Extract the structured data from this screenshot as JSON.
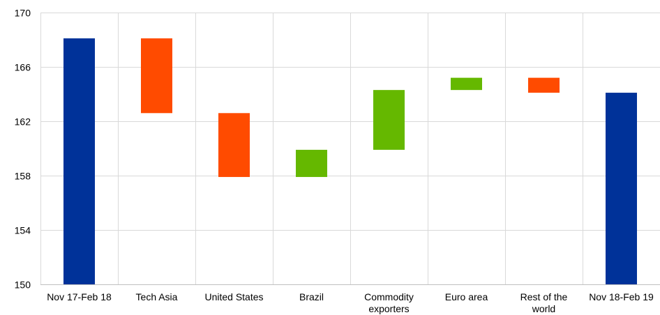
{
  "chart_data": {
    "type": "bar",
    "subtype": "waterfall",
    "title": "",
    "xlabel": "",
    "ylabel": "",
    "ylim": [
      150,
      170
    ],
    "yticks": [
      150,
      154,
      158,
      162,
      166,
      170
    ],
    "grid": true,
    "categories": [
      [
        "Nov 17-Feb 18"
      ],
      [
        "Tech Asia"
      ],
      [
        "United States"
      ],
      [
        "Brazil"
      ],
      [
        "Commodity",
        "exporters"
      ],
      [
        "Euro area"
      ],
      [
        "Rest of the",
        "world"
      ],
      [
        "Nov 18-Feb 19"
      ]
    ],
    "bars": [
      {
        "low": 150.0,
        "high": 168.1,
        "kind": "total"
      },
      {
        "low": 162.6,
        "high": 168.1,
        "kind": "decrease"
      },
      {
        "low": 157.9,
        "high": 162.6,
        "kind": "decrease"
      },
      {
        "low": 157.9,
        "high": 159.9,
        "kind": "increase"
      },
      {
        "low": 159.9,
        "high": 164.3,
        "kind": "increase"
      },
      {
        "low": 164.3,
        "high": 165.2,
        "kind": "increase"
      },
      {
        "low": 164.1,
        "high": 165.2,
        "kind": "decrease"
      },
      {
        "low": 150.0,
        "high": 164.1,
        "kind": "total"
      }
    ],
    "colors": {
      "total": "#003299",
      "decrease": "#ff4b00",
      "increase": "#65b800"
    }
  }
}
